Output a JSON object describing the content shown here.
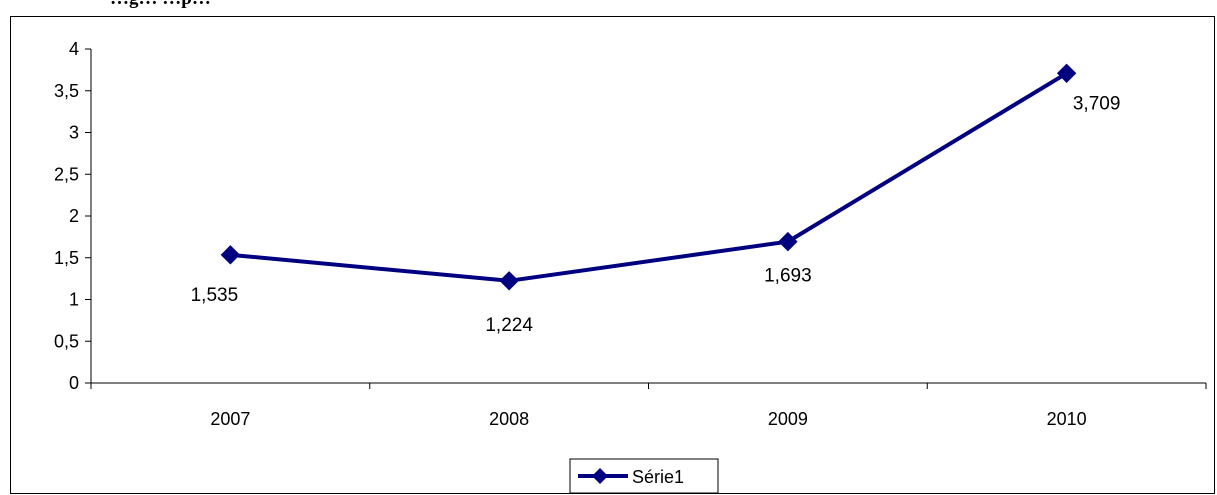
{
  "page": {
    "title_visible": "…g… …p…"
  },
  "chart_data": {
    "type": "line",
    "title": "",
    "xlabel": "",
    "ylabel": "",
    "categories": [
      "2007",
      "2008",
      "2009",
      "2010"
    ],
    "series": [
      {
        "name": "Série1",
        "values": [
          1.535,
          1.224,
          1.693,
          3.709
        ],
        "data_labels": [
          "1,535",
          "1,224",
          "1,693",
          "3,709"
        ],
        "color": "#000080",
        "marker": "diamond"
      }
    ],
    "ylim": [
      0,
      4
    ],
    "yticks": [
      0,
      0.5,
      1,
      1.5,
      2,
      2.5,
      3,
      3.5,
      4
    ],
    "ytick_labels": [
      "0",
      "0,5",
      "1",
      "1,5",
      "2",
      "2,5",
      "3",
      "3,5",
      "4"
    ],
    "grid": false,
    "legend_position": "bottom"
  }
}
